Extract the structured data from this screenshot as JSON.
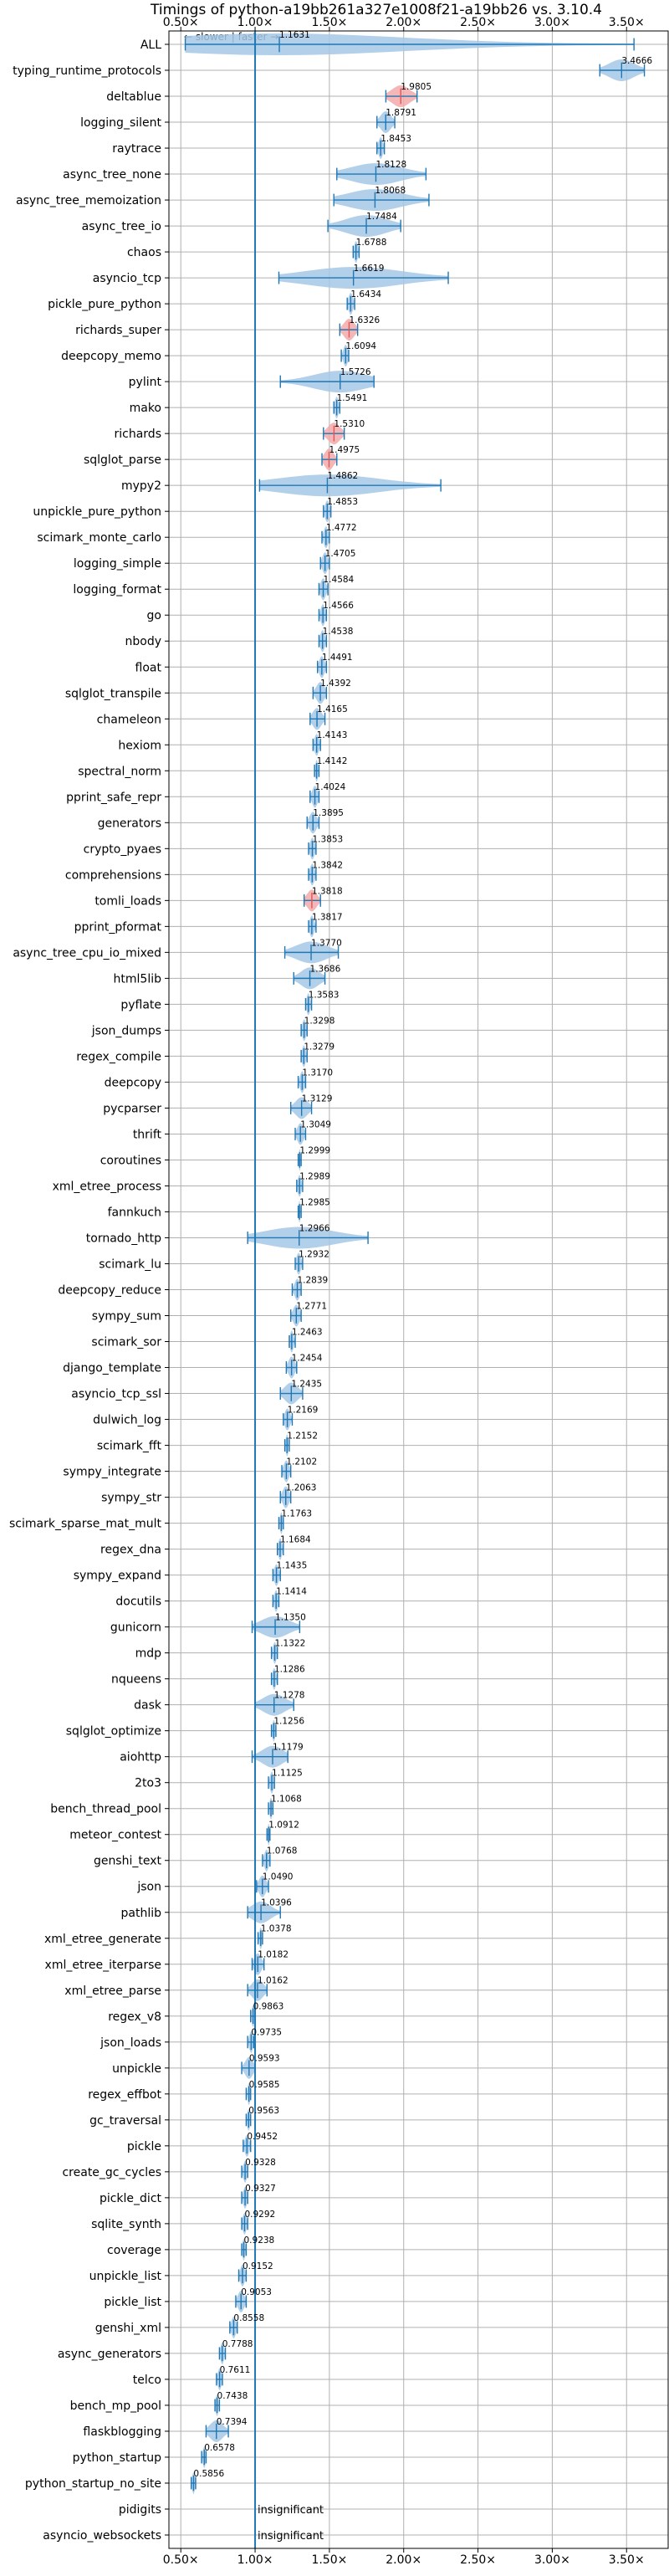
{
  "chart_data": {
    "type": "violin",
    "title": "Timings of python-a19bb261a327e1008f21-a19bb26 vs. 3.10.4",
    "x_tick_labels": [
      "0.50×",
      "1.00×",
      "1.50×",
      "2.00×",
      "2.50×",
      "3.00×",
      "3.50×"
    ],
    "x_ticks": [
      0.5,
      1.0,
      1.5,
      2.0,
      2.5,
      3.0,
      3.5
    ],
    "xlim": [
      0.42,
      3.78
    ],
    "grid": true,
    "reference_line": 1.0,
    "direction_note": "← slower | faster →",
    "insignificant_text": "insignificant",
    "colors": {
      "violin_fill": "#a6c8e6",
      "line": "#1f77b4",
      "highlight_fill": "#f2a9a9",
      "highlight_line": "#e05555",
      "grid": "#b0b0b0",
      "axis": "#000000"
    },
    "benchmarks": [
      {
        "name": "ALL",
        "value": 1.1631,
        "label": "1.1631",
        "min": 0.53,
        "max": 3.55
      },
      {
        "name": "typing_runtime_protocols",
        "value": 3.4666,
        "label": "3.4666",
        "min": 3.32,
        "max": 3.62
      },
      {
        "name": "deltablue",
        "value": 1.9805,
        "label": "1.9805",
        "min": 1.88,
        "max": 2.09,
        "highlight": true
      },
      {
        "name": "logging_silent",
        "value": 1.8791,
        "label": "1.8791",
        "min": 1.82,
        "max": 1.94
      },
      {
        "name": "raytrace",
        "value": 1.8453,
        "label": "1.8453",
        "min": 1.82,
        "max": 1.87
      },
      {
        "name": "async_tree_none",
        "value": 1.8128,
        "label": "1.8128",
        "min": 1.55,
        "max": 2.15
      },
      {
        "name": "async_tree_memoization",
        "value": 1.8068,
        "label": "1.8068",
        "min": 1.53,
        "max": 2.17
      },
      {
        "name": "async_tree_io",
        "value": 1.7484,
        "label": "1.7484",
        "min": 1.49,
        "max": 1.98
      },
      {
        "name": "chaos",
        "value": 1.6788,
        "label": "1.6788",
        "min": 1.66,
        "max": 1.7
      },
      {
        "name": "asyncio_tcp",
        "value": 1.6619,
        "label": "1.6619",
        "min": 1.16,
        "max": 2.3
      },
      {
        "name": "pickle_pure_python",
        "value": 1.6434,
        "label": "1.6434",
        "min": 1.62,
        "max": 1.67
      },
      {
        "name": "richards_super",
        "value": 1.6326,
        "label": "1.6326",
        "min": 1.57,
        "max": 1.69,
        "highlight": true
      },
      {
        "name": "deepcopy_memo",
        "value": 1.6094,
        "label": "1.6094",
        "min": 1.58,
        "max": 1.63
      },
      {
        "name": "pylint",
        "value": 1.5726,
        "label": "1.5726",
        "min": 1.17,
        "max": 1.8
      },
      {
        "name": "mako",
        "value": 1.5491,
        "label": "1.5491",
        "min": 1.53,
        "max": 1.57
      },
      {
        "name": "richards",
        "value": 1.531,
        "label": "1.5310",
        "min": 1.46,
        "max": 1.6,
        "highlight": true
      },
      {
        "name": "sqlglot_parse",
        "value": 1.4975,
        "label": "1.4975",
        "min": 1.45,
        "max": 1.55,
        "highlight": true
      },
      {
        "name": "mypy2",
        "value": 1.4862,
        "label": "1.4862",
        "min": 1.03,
        "max": 2.25
      },
      {
        "name": "unpickle_pure_python",
        "value": 1.4853,
        "label": "1.4853",
        "min": 1.46,
        "max": 1.51
      },
      {
        "name": "scimark_monte_carlo",
        "value": 1.4772,
        "label": "1.4772",
        "min": 1.45,
        "max": 1.5
      },
      {
        "name": "logging_simple",
        "value": 1.4705,
        "label": "1.4705",
        "min": 1.44,
        "max": 1.5
      },
      {
        "name": "logging_format",
        "value": 1.4584,
        "label": "1.4584",
        "min": 1.43,
        "max": 1.49
      },
      {
        "name": "go",
        "value": 1.4566,
        "label": "1.4566",
        "min": 1.43,
        "max": 1.48
      },
      {
        "name": "nbody",
        "value": 1.4538,
        "label": "1.4538",
        "min": 1.43,
        "max": 1.48
      },
      {
        "name": "float",
        "value": 1.4491,
        "label": "1.4491",
        "min": 1.42,
        "max": 1.48
      },
      {
        "name": "sqlglot_transpile",
        "value": 1.4392,
        "label": "1.4392",
        "min": 1.39,
        "max": 1.48
      },
      {
        "name": "chameleon",
        "value": 1.4165,
        "label": "1.4165",
        "min": 1.37,
        "max": 1.47
      },
      {
        "name": "hexiom",
        "value": 1.4143,
        "label": "1.4143",
        "min": 1.39,
        "max": 1.44
      },
      {
        "name": "spectral_norm",
        "value": 1.4142,
        "label": "1.4142",
        "min": 1.4,
        "max": 1.43
      },
      {
        "name": "pprint_safe_repr",
        "value": 1.4024,
        "label": "1.4024",
        "min": 1.37,
        "max": 1.43
      },
      {
        "name": "generators",
        "value": 1.3895,
        "label": "1.3895",
        "min": 1.35,
        "max": 1.43
      },
      {
        "name": "crypto_pyaes",
        "value": 1.3853,
        "label": "1.3853",
        "min": 1.36,
        "max": 1.41
      },
      {
        "name": "comprehensions",
        "value": 1.3842,
        "label": "1.3842",
        "min": 1.36,
        "max": 1.41
      },
      {
        "name": "tomli_loads",
        "value": 1.3818,
        "label": "1.3818",
        "min": 1.33,
        "max": 1.44,
        "highlight": true
      },
      {
        "name": "pprint_pformat",
        "value": 1.3817,
        "label": "1.3817",
        "min": 1.36,
        "max": 1.41
      },
      {
        "name": "async_tree_cpu_io_mixed",
        "value": 1.377,
        "label": "1.3770",
        "min": 1.2,
        "max": 1.56
      },
      {
        "name": "html5lib",
        "value": 1.3686,
        "label": "1.3686",
        "min": 1.26,
        "max": 1.47
      },
      {
        "name": "pyflate",
        "value": 1.3583,
        "label": "1.3583",
        "min": 1.34,
        "max": 1.38
      },
      {
        "name": "json_dumps",
        "value": 1.3298,
        "label": "1.3298",
        "min": 1.31,
        "max": 1.35
      },
      {
        "name": "regex_compile",
        "value": 1.3279,
        "label": "1.3279",
        "min": 1.31,
        "max": 1.35
      },
      {
        "name": "deepcopy",
        "value": 1.317,
        "label": "1.3170",
        "min": 1.29,
        "max": 1.34
      },
      {
        "name": "pycparser",
        "value": 1.3129,
        "label": "1.3129",
        "min": 1.24,
        "max": 1.38
      },
      {
        "name": "thrift",
        "value": 1.3049,
        "label": "1.3049",
        "min": 1.27,
        "max": 1.34
      },
      {
        "name": "coroutines",
        "value": 1.2999,
        "label": "1.2999",
        "min": 1.29,
        "max": 1.31
      },
      {
        "name": "xml_etree_process",
        "value": 1.2989,
        "label": "1.2989",
        "min": 1.28,
        "max": 1.32
      },
      {
        "name": "fannkuch",
        "value": 1.2985,
        "label": "1.2985",
        "min": 1.29,
        "max": 1.31
      },
      {
        "name": "tornado_http",
        "value": 1.2966,
        "label": "1.2966",
        "min": 0.95,
        "max": 1.76
      },
      {
        "name": "scimark_lu",
        "value": 1.2932,
        "label": "1.2932",
        "min": 1.27,
        "max": 1.32
      },
      {
        "name": "deepcopy_reduce",
        "value": 1.2839,
        "label": "1.2839",
        "min": 1.25,
        "max": 1.31
      },
      {
        "name": "sympy_sum",
        "value": 1.2771,
        "label": "1.2771",
        "min": 1.24,
        "max": 1.31
      },
      {
        "name": "scimark_sor",
        "value": 1.2463,
        "label": "1.2463",
        "min": 1.23,
        "max": 1.27
      },
      {
        "name": "django_template",
        "value": 1.2454,
        "label": "1.2454",
        "min": 1.21,
        "max": 1.28
      },
      {
        "name": "asyncio_tcp_ssl",
        "value": 1.2435,
        "label": "1.2435",
        "min": 1.17,
        "max": 1.32
      },
      {
        "name": "dulwich_log",
        "value": 1.2169,
        "label": "1.2169",
        "min": 1.19,
        "max": 1.25
      },
      {
        "name": "scimark_fft",
        "value": 1.2152,
        "label": "1.2152",
        "min": 1.2,
        "max": 1.23
      },
      {
        "name": "sympy_integrate",
        "value": 1.2102,
        "label": "1.2102",
        "min": 1.18,
        "max": 1.24
      },
      {
        "name": "sympy_str",
        "value": 1.2063,
        "label": "1.2063",
        "min": 1.17,
        "max": 1.24
      },
      {
        "name": "scimark_sparse_mat_mult",
        "value": 1.1763,
        "label": "1.1763",
        "min": 1.16,
        "max": 1.19
      },
      {
        "name": "regex_dna",
        "value": 1.1684,
        "label": "1.1684",
        "min": 1.15,
        "max": 1.19
      },
      {
        "name": "sympy_expand",
        "value": 1.1435,
        "label": "1.1435",
        "min": 1.12,
        "max": 1.17
      },
      {
        "name": "docutils",
        "value": 1.1414,
        "label": "1.1414",
        "min": 1.12,
        "max": 1.16
      },
      {
        "name": "gunicorn",
        "value": 1.135,
        "label": "1.1350",
        "min": 0.98,
        "max": 1.3
      },
      {
        "name": "mdp",
        "value": 1.1322,
        "label": "1.1322",
        "min": 1.11,
        "max": 1.15
      },
      {
        "name": "nqueens",
        "value": 1.1286,
        "label": "1.1286",
        "min": 1.11,
        "max": 1.15
      },
      {
        "name": "dask",
        "value": 1.1278,
        "label": "1.1278",
        "min": 1.0,
        "max": 1.26
      },
      {
        "name": "sqlglot_optimize",
        "value": 1.1256,
        "label": "1.1256",
        "min": 1.11,
        "max": 1.14
      },
      {
        "name": "aiohttp",
        "value": 1.1179,
        "label": "1.1179",
        "min": 0.98,
        "max": 1.22
      },
      {
        "name": "2to3",
        "value": 1.1125,
        "label": "1.1125",
        "min": 1.09,
        "max": 1.13
      },
      {
        "name": "bench_thread_pool",
        "value": 1.1068,
        "label": "1.1068",
        "min": 1.09,
        "max": 1.12
      },
      {
        "name": "meteor_contest",
        "value": 1.0912,
        "label": "1.0912",
        "min": 1.08,
        "max": 1.1
      },
      {
        "name": "genshi_text",
        "value": 1.0768,
        "label": "1.0768",
        "min": 1.05,
        "max": 1.1
      },
      {
        "name": "json",
        "value": 1.049,
        "label": "1.0490",
        "min": 1.01,
        "max": 1.09
      },
      {
        "name": "pathlib",
        "value": 1.0396,
        "label": "1.0396",
        "min": 0.95,
        "max": 1.17
      },
      {
        "name": "xml_etree_generate",
        "value": 1.0378,
        "label": "1.0378",
        "min": 1.02,
        "max": 1.05
      },
      {
        "name": "xml_etree_iterparse",
        "value": 1.0182,
        "label": "1.0182",
        "min": 0.98,
        "max": 1.06
      },
      {
        "name": "xml_etree_parse",
        "value": 1.0162,
        "label": "1.0162",
        "min": 0.95,
        "max": 1.08
      },
      {
        "name": "regex_v8",
        "value": 0.9863,
        "label": "0.9863",
        "min": 0.97,
        "max": 1.0
      },
      {
        "name": "json_loads",
        "value": 0.9735,
        "label": "0.9735",
        "min": 0.95,
        "max": 0.99
      },
      {
        "name": "unpickle",
        "value": 0.9593,
        "label": "0.9593",
        "min": 0.91,
        "max": 1.0
      },
      {
        "name": "regex_effbot",
        "value": 0.9585,
        "label": "0.9585",
        "min": 0.94,
        "max": 0.97
      },
      {
        "name": "gc_traversal",
        "value": 0.9563,
        "label": "0.9563",
        "min": 0.94,
        "max": 0.97
      },
      {
        "name": "pickle",
        "value": 0.9452,
        "label": "0.9452",
        "min": 0.92,
        "max": 0.97
      },
      {
        "name": "create_gc_cycles",
        "value": 0.9328,
        "label": "0.9328",
        "min": 0.91,
        "max": 0.95
      },
      {
        "name": "pickle_dict",
        "value": 0.9327,
        "label": "0.9327",
        "min": 0.91,
        "max": 0.95
      },
      {
        "name": "sqlite_synth",
        "value": 0.9292,
        "label": "0.9292",
        "min": 0.91,
        "max": 0.95
      },
      {
        "name": "coverage",
        "value": 0.9238,
        "label": "0.9238",
        "min": 0.91,
        "max": 0.94
      },
      {
        "name": "unpickle_list",
        "value": 0.9152,
        "label": "0.9152",
        "min": 0.89,
        "max": 0.94
      },
      {
        "name": "pickle_list",
        "value": 0.9053,
        "label": "0.9053",
        "min": 0.87,
        "max": 0.94
      },
      {
        "name": "genshi_xml",
        "value": 0.8558,
        "label": "0.8558",
        "min": 0.83,
        "max": 0.88
      },
      {
        "name": "async_generators",
        "value": 0.7788,
        "label": "0.7788",
        "min": 0.76,
        "max": 0.8
      },
      {
        "name": "telco",
        "value": 0.7611,
        "label": "0.7611",
        "min": 0.74,
        "max": 0.78
      },
      {
        "name": "bench_mp_pool",
        "value": 0.7438,
        "label": "0.7438",
        "min": 0.73,
        "max": 0.76
      },
      {
        "name": "flaskblogging",
        "value": 0.7394,
        "label": "0.7394",
        "min": 0.67,
        "max": 0.82
      },
      {
        "name": "python_startup",
        "value": 0.6578,
        "label": "0.6578",
        "min": 0.64,
        "max": 0.67
      },
      {
        "name": "python_startup_no_site",
        "value": 0.5856,
        "label": "0.5856",
        "min": 0.57,
        "max": 0.6
      },
      {
        "name": "pidigits",
        "insignificant": true
      },
      {
        "name": "asyncio_websockets",
        "insignificant": true
      }
    ]
  }
}
